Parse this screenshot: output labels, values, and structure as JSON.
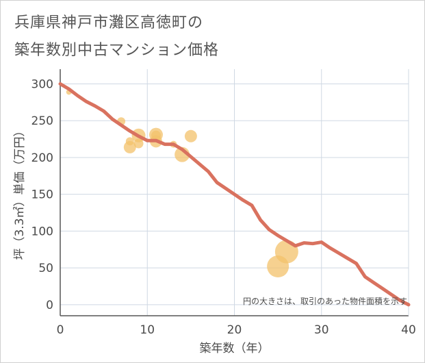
{
  "chart_data": {
    "type": "scatter",
    "title_lines": [
      "兵庫県神戸市灘区高徳町の",
      "築年数別中古マンション価格"
    ],
    "xlabel": "築年数（年）",
    "ylabel": "坪（3.3㎡）単価（万円）",
    "xlim": [
      0,
      40
    ],
    "ylim": [
      -15,
      320
    ],
    "x_ticks": [
      0,
      10,
      20,
      30,
      40
    ],
    "y_ticks": [
      0,
      50,
      100,
      150,
      200,
      250,
      300
    ],
    "grid": true,
    "note": "円の大きさは、取引のあった物件面積を示す",
    "colors": {
      "bubble": "#f3c26b",
      "line": "#d9725f",
      "grid": "#cfd8e3",
      "axis": "#555555"
    },
    "bubbles": [
      {
        "x": 1,
        "y": 289,
        "size": 4
      },
      {
        "x": 7,
        "y": 249,
        "size": 6
      },
      {
        "x": 8,
        "y": 222,
        "size": 6
      },
      {
        "x": 8,
        "y": 214,
        "size": 9
      },
      {
        "x": 9,
        "y": 230,
        "size": 10
      },
      {
        "x": 9,
        "y": 219,
        "size": 7
      },
      {
        "x": 11,
        "y": 231,
        "size": 10
      },
      {
        "x": 11,
        "y": 230,
        "size": 7
      },
      {
        "x": 11,
        "y": 222,
        "size": 9
      },
      {
        "x": 13,
        "y": 218,
        "size": 5
      },
      {
        "x": 14,
        "y": 204,
        "size": 11
      },
      {
        "x": 15,
        "y": 229,
        "size": 9
      },
      {
        "x": 25,
        "y": 52,
        "size": 16
      },
      {
        "x": 26,
        "y": 72,
        "size": 17
      }
    ],
    "trend_line": {
      "x": [
        0,
        1,
        2,
        3,
        4,
        5,
        6,
        7,
        8,
        9,
        10,
        11,
        12,
        13,
        14,
        15,
        16,
        17,
        18,
        19,
        20,
        21,
        22,
        23,
        24,
        25,
        26,
        27,
        28,
        29,
        30,
        31,
        32,
        33,
        34,
        35,
        36,
        37,
        38,
        39,
        40
      ],
      "y": [
        300,
        293,
        284,
        276,
        270,
        263,
        252,
        244,
        236,
        229,
        223,
        223,
        218,
        218,
        211,
        201,
        191,
        181,
        166,
        158,
        150,
        142,
        135,
        115,
        102,
        94,
        87,
        80,
        84,
        83,
        85,
        77,
        70,
        63,
        56,
        38,
        30,
        22,
        14,
        6,
        0
      ]
    }
  }
}
